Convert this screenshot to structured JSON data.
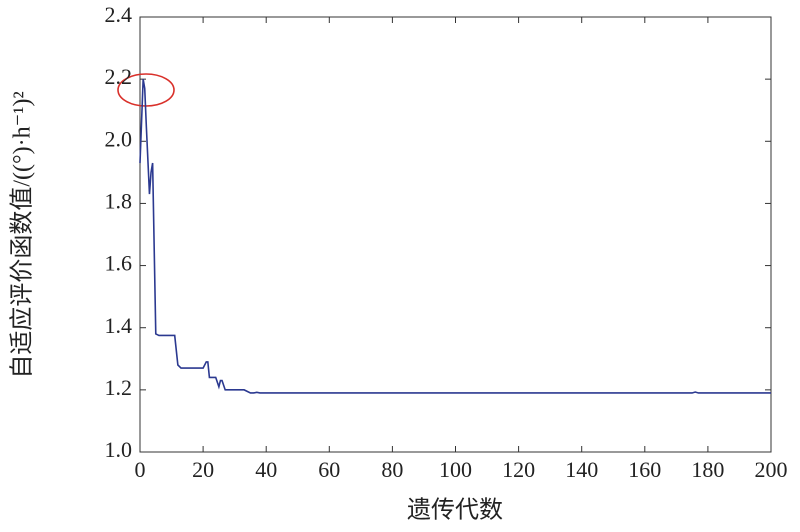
{
  "chart_data": {
    "type": "line",
    "xlabel": "遗传代数",
    "ylabel": "自适应评价函数值/((°)·h⁻¹)²",
    "x": [
      0,
      1,
      1.5,
      2,
      3,
      3.5,
      4,
      5,
      6,
      11,
      12,
      13,
      20,
      21,
      21.5,
      22,
      24,
      25,
      25.5,
      26,
      27,
      33,
      35,
      36,
      37,
      38,
      175,
      176,
      177,
      200
    ],
    "series": [
      {
        "color": "#2b3990",
        "values": [
          1.93,
          2.2,
          2.17,
          2.05,
          1.83,
          1.9,
          1.93,
          1.38,
          1.375,
          1.375,
          1.28,
          1.27,
          1.27,
          1.29,
          1.29,
          1.24,
          1.24,
          1.21,
          1.23,
          1.23,
          1.2,
          1.2,
          1.19,
          1.19,
          1.192,
          1.19,
          1.19,
          1.193,
          1.19,
          1.19
        ]
      }
    ],
    "xlim": [
      0,
      200
    ],
    "xticks": [
      0,
      20,
      40,
      60,
      80,
      100,
      120,
      140,
      160,
      180,
      200
    ],
    "ylim": [
      1,
      2.4
    ],
    "yticks": [
      {
        "value": 1,
        "label": "1.0"
      },
      1.2,
      1.4,
      1.6,
      1.8,
      {
        "value": 2,
        "label": "2.0"
      },
      2.2,
      2.4
    ]
  }
}
